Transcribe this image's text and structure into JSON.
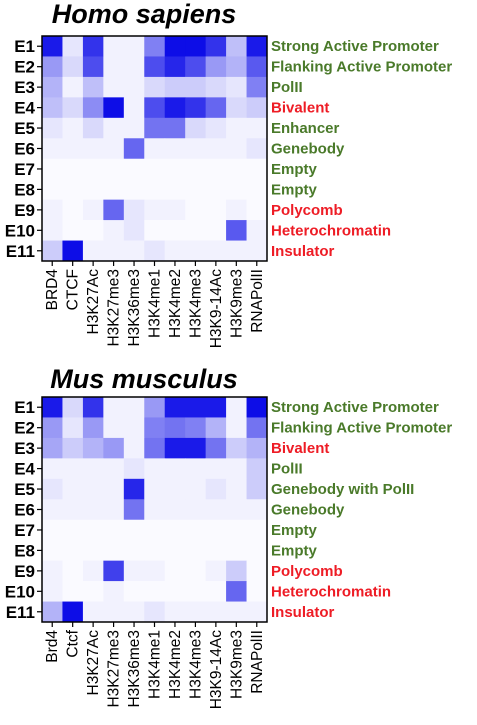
{
  "colors": {
    "active": "#4a7a2a",
    "repressive": "#ee1c25",
    "heat_high": "#0000e6",
    "heat_low": "#ffffff"
  },
  "chart_data": [
    {
      "type": "heatmap",
      "title": "Homo sapiens",
      "rows": [
        "E1",
        "E2",
        "E3",
        "E4",
        "E5",
        "E6",
        "E7",
        "E8",
        "E9",
        "E10",
        "E11"
      ],
      "columns": [
        "BRD4",
        "CTCF",
        "H3K27Ac",
        "H3K27me3",
        "H3K36me3",
        "H3K4me1",
        "H3K4me2",
        "H3K4me3",
        "H3K9-14Ac",
        "H3K9me3",
        "RNAPolII"
      ],
      "states": [
        {
          "label": "Strong Active Promoter",
          "class": "active"
        },
        {
          "label": "Flanking Active Promoter",
          "class": "active"
        },
        {
          "label": "PolII",
          "class": "active"
        },
        {
          "label": "Bivalent",
          "class": "repressive"
        },
        {
          "label": "Enhancer",
          "class": "active"
        },
        {
          "label": "Genebody",
          "class": "active"
        },
        {
          "label": "Empty",
          "class": "active"
        },
        {
          "label": "Empty",
          "class": "active"
        },
        {
          "label": "Polycomb",
          "class": "repressive"
        },
        {
          "label": "Heterochromatin",
          "class": "repressive"
        },
        {
          "label": "Insulator",
          "class": "repressive"
        }
      ],
      "values": [
        [
          0.9,
          0.1,
          0.8,
          0.05,
          0.05,
          0.5,
          0.95,
          0.95,
          0.8,
          0.25,
          0.9
        ],
        [
          0.4,
          0.15,
          0.7,
          0.05,
          0.05,
          0.7,
          0.85,
          0.7,
          0.4,
          0.3,
          0.65
        ],
        [
          0.3,
          0.05,
          0.25,
          0.05,
          0.05,
          0.15,
          0.2,
          0.2,
          0.15,
          0.1,
          0.5
        ],
        [
          0.25,
          0.15,
          0.45,
          0.95,
          0.05,
          0.7,
          0.9,
          0.8,
          0.6,
          0.15,
          0.2
        ],
        [
          0.1,
          0.05,
          0.15,
          0.05,
          0.05,
          0.55,
          0.55,
          0.15,
          0.1,
          0.05,
          0.05
        ],
        [
          0.05,
          0.05,
          0.05,
          0.05,
          0.6,
          0.05,
          0.05,
          0.05,
          0.05,
          0.05,
          0.1
        ],
        [
          0.02,
          0.02,
          0.02,
          0.02,
          0.02,
          0.02,
          0.02,
          0.02,
          0.02,
          0.02,
          0.02
        ],
        [
          0.02,
          0.02,
          0.02,
          0.02,
          0.02,
          0.02,
          0.02,
          0.02,
          0.02,
          0.02,
          0.02
        ],
        [
          0.05,
          0.02,
          0.05,
          0.6,
          0.1,
          0.05,
          0.05,
          0.02,
          0.02,
          0.05,
          0.02
        ],
        [
          0.05,
          0.02,
          0.02,
          0.05,
          0.1,
          0.02,
          0.02,
          0.02,
          0.02,
          0.65,
          0.05
        ],
        [
          0.2,
          0.95,
          0.05,
          0.05,
          0.05,
          0.1,
          0.05,
          0.05,
          0.05,
          0.05,
          0.05
        ]
      ]
    },
    {
      "type": "heatmap",
      "title": "Mus musculus",
      "rows": [
        "E1",
        "E2",
        "E3",
        "E4",
        "E5",
        "E6",
        "E7",
        "E8",
        "E9",
        "E10",
        "E11"
      ],
      "columns": [
        "Brd4",
        "Ctcf",
        "H3K27Ac",
        "H3K27me3",
        "H3K36me3",
        "H3K4me1",
        "H3K4me2",
        "H3K4me3",
        "H3K9-14Ac",
        "H3K9me3",
        "RNAPolII"
      ],
      "states": [
        {
          "label": "Strong Active Promoter",
          "class": "active"
        },
        {
          "label": "Flanking Active Promoter",
          "class": "active"
        },
        {
          "label": "Bivalent",
          "class": "repressive"
        },
        {
          "label": "PolII",
          "class": "active"
        },
        {
          "label": "Genebody with PolII",
          "class": "active"
        },
        {
          "label": "Genebody",
          "class": "active"
        },
        {
          "label": "Empty",
          "class": "active"
        },
        {
          "label": "Empty",
          "class": "active"
        },
        {
          "label": "Polycomb",
          "class": "repressive"
        },
        {
          "label": "Heterochromatin",
          "class": "repressive"
        },
        {
          "label": "Insulator",
          "class": "repressive"
        }
      ],
      "values": [
        [
          0.9,
          0.15,
          0.8,
          0.05,
          0.05,
          0.4,
          0.9,
          0.9,
          0.9,
          0.05,
          0.95
        ],
        [
          0.4,
          0.1,
          0.4,
          0.05,
          0.05,
          0.5,
          0.55,
          0.5,
          0.3,
          0.05,
          0.55
        ],
        [
          0.35,
          0.2,
          0.3,
          0.4,
          0.05,
          0.55,
          0.9,
          0.9,
          0.55,
          0.2,
          0.3
        ],
        [
          0.05,
          0.05,
          0.05,
          0.05,
          0.1,
          0.05,
          0.05,
          0.05,
          0.05,
          0.05,
          0.2
        ],
        [
          0.1,
          0.05,
          0.05,
          0.05,
          0.85,
          0.05,
          0.05,
          0.05,
          0.1,
          0.05,
          0.2
        ],
        [
          0.05,
          0.05,
          0.05,
          0.05,
          0.55,
          0.05,
          0.05,
          0.05,
          0.05,
          0.05,
          0.05
        ],
        [
          0.02,
          0.02,
          0.02,
          0.02,
          0.02,
          0.02,
          0.02,
          0.02,
          0.02,
          0.02,
          0.02
        ],
        [
          0.02,
          0.02,
          0.02,
          0.02,
          0.02,
          0.02,
          0.02,
          0.02,
          0.02,
          0.02,
          0.02
        ],
        [
          0.05,
          0.02,
          0.05,
          0.75,
          0.05,
          0.05,
          0.02,
          0.02,
          0.05,
          0.2,
          0.02
        ],
        [
          0.05,
          0.02,
          0.02,
          0.05,
          0.02,
          0.02,
          0.02,
          0.02,
          0.02,
          0.6,
          0.02
        ],
        [
          0.3,
          0.95,
          0.05,
          0.05,
          0.05,
          0.1,
          0.05,
          0.05,
          0.05,
          0.05,
          0.05
        ]
      ]
    }
  ]
}
